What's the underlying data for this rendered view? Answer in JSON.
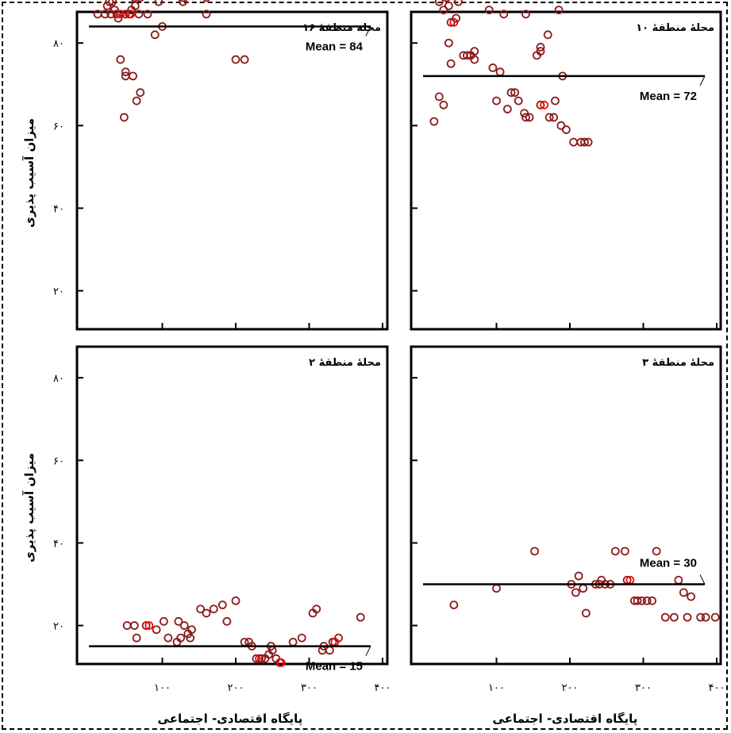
{
  "chart_data": {
    "type": "scatter",
    "layout": "2x2 facets",
    "xlabel": "پایگاه اقتصادی- اجتماعی",
    "ylabel": "میزان آسیب پذیری",
    "xlim": [
      0,
      400
    ],
    "ylim": [
      8,
      86
    ],
    "x_ticks": [
      100,
      200,
      300,
      400
    ],
    "x_tick_labels": [
      "۱۰۰",
      "۲۰۰",
      "۳۰۰",
      "۴۰۰"
    ],
    "y_ticks": [
      20,
      40,
      60,
      80
    ],
    "y_tick_labels": [
      "۲۰",
      "۴۰",
      "۶۰",
      "۸۰"
    ],
    "marker_color": "#8b1a1a",
    "overlap_color": "#ff0000",
    "grid": false,
    "panels": [
      {
        "id": "z16",
        "title": "محله منطقهٔ ۱۶",
        "mean_value": 84,
        "mean_label": "Mean = 84",
        "points": [
          [
            12,
            87
          ],
          [
            22,
            87
          ],
          [
            25,
            89
          ],
          [
            28,
            90
          ],
          [
            30,
            87
          ],
          [
            32,
            90
          ],
          [
            35,
            88
          ],
          [
            38,
            87
          ],
          [
            40,
            86
          ],
          [
            42,
            93
          ],
          [
            43,
            87
          ],
          [
            45,
            93
          ],
          [
            48,
            93
          ],
          [
            50,
            87
          ],
          [
            52,
            92
          ],
          [
            55,
            87
          ],
          [
            57,
            87
          ],
          [
            58,
            88
          ],
          [
            60,
            93
          ],
          [
            62,
            91
          ],
          [
            63,
            89
          ],
          [
            65,
            93
          ],
          [
            68,
            87
          ],
          [
            70,
            91
          ],
          [
            78,
            92
          ],
          [
            80,
            87
          ],
          [
            82,
            94
          ],
          [
            90,
            82
          ],
          [
            95,
            90
          ],
          [
            100,
            84
          ],
          [
            128,
            91
          ],
          [
            128,
            90
          ],
          [
            160,
            91
          ],
          [
            160,
            87
          ],
          [
            43,
            76
          ],
          [
            50,
            72
          ],
          [
            50,
            73
          ],
          [
            60,
            72
          ],
          [
            65,
            66
          ],
          [
            70,
            68
          ],
          [
            48,
            62
          ],
          [
            200,
            76
          ],
          [
            212,
            76
          ]
        ]
      },
      {
        "id": "z10",
        "title": "محلهٔ منطقهٔ ۱۰",
        "mean_value": 72,
        "mean_label": "Mean = 72",
        "points": [
          [
            22,
            90
          ],
          [
            28,
            88
          ],
          [
            32,
            91
          ],
          [
            35,
            89
          ],
          [
            38,
            85
          ],
          [
            42,
            85
          ],
          [
            45,
            86
          ],
          [
            48,
            90
          ],
          [
            50,
            92
          ],
          [
            35,
            80
          ],
          [
            38,
            75
          ],
          [
            55,
            77
          ],
          [
            60,
            77
          ],
          [
            65,
            77
          ],
          [
            70,
            78
          ],
          [
            70,
            76
          ],
          [
            90,
            88
          ],
          [
            95,
            74
          ],
          [
            105,
            73
          ],
          [
            110,
            87
          ],
          [
            140,
            87
          ],
          [
            155,
            77
          ],
          [
            160,
            79
          ],
          [
            160,
            78
          ],
          [
            170,
            82
          ],
          [
            185,
            88
          ],
          [
            190,
            72
          ],
          [
            180,
            66
          ],
          [
            15,
            61
          ],
          [
            22,
            67
          ],
          [
            28,
            65
          ],
          [
            100,
            66
          ],
          [
            115,
            64
          ],
          [
            120,
            68
          ],
          [
            125,
            68
          ],
          [
            130,
            66
          ],
          [
            138,
            63
          ],
          [
            140,
            62
          ],
          [
            145,
            62
          ],
          [
            160,
            65
          ],
          [
            165,
            65
          ],
          [
            172,
            62
          ],
          [
            178,
            62
          ],
          [
            188,
            60
          ],
          [
            195,
            59
          ],
          [
            205,
            56
          ],
          [
            215,
            56
          ],
          [
            220,
            56
          ],
          [
            225,
            56
          ]
        ]
      },
      {
        "id": "z2",
        "title": "محلهٔ منطقهٔ ۲",
        "mean_value": 15,
        "mean_label": "Mean = 15",
        "points": [
          [
            52,
            20
          ],
          [
            62,
            20
          ],
          [
            78,
            20
          ],
          [
            82,
            20
          ],
          [
            92,
            19
          ],
          [
            102,
            21
          ],
          [
            122,
            21
          ],
          [
            130,
            20
          ],
          [
            135,
            18
          ],
          [
            140,
            19
          ],
          [
            152,
            24
          ],
          [
            160,
            23
          ],
          [
            170,
            24
          ],
          [
            182,
            25
          ],
          [
            188,
            21
          ],
          [
            200,
            26
          ],
          [
            212,
            16
          ],
          [
            218,
            16
          ],
          [
            222,
            15
          ],
          [
            228,
            12
          ],
          [
            232,
            12
          ],
          [
            235,
            12
          ],
          [
            240,
            12
          ],
          [
            245,
            13
          ],
          [
            248,
            15
          ],
          [
            250,
            14
          ],
          [
            255,
            12
          ],
          [
            260,
            11
          ],
          [
            262,
            11
          ],
          [
            278,
            16
          ],
          [
            290,
            17
          ],
          [
            305,
            23
          ],
          [
            310,
            24
          ],
          [
            318,
            14
          ],
          [
            320,
            15
          ],
          [
            328,
            14
          ],
          [
            332,
            16
          ],
          [
            335,
            16
          ],
          [
            340,
            17
          ],
          [
            370,
            22
          ],
          [
            65,
            17
          ],
          [
            108,
            17
          ],
          [
            120,
            16
          ],
          [
            125,
            17
          ],
          [
            138,
            17
          ]
        ]
      },
      {
        "id": "z3",
        "title": "محلهٔ منطقهٔ ۳",
        "mean_value": 30,
        "mean_label": "Mean = 30",
        "points": [
          [
            42,
            25
          ],
          [
            100,
            29
          ],
          [
            152,
            38
          ],
          [
            202,
            30
          ],
          [
            208,
            28
          ],
          [
            212,
            32
          ],
          [
            218,
            29
          ],
          [
            222,
            23
          ],
          [
            235,
            30
          ],
          [
            240,
            30
          ],
          [
            243,
            31
          ],
          [
            248,
            30
          ],
          [
            255,
            30
          ],
          [
            262,
            38
          ],
          [
            275,
            38
          ],
          [
            278,
            31
          ],
          [
            282,
            31
          ],
          [
            288,
            26
          ],
          [
            292,
            26
          ],
          [
            298,
            26
          ],
          [
            305,
            26
          ],
          [
            312,
            26
          ],
          [
            318,
            38
          ],
          [
            330,
            22
          ],
          [
            342,
            22
          ],
          [
            348,
            31
          ],
          [
            355,
            28
          ],
          [
            360,
            22
          ],
          [
            365,
            27
          ],
          [
            378,
            22
          ],
          [
            385,
            22
          ],
          [
            398,
            22
          ]
        ]
      }
    ]
  }
}
